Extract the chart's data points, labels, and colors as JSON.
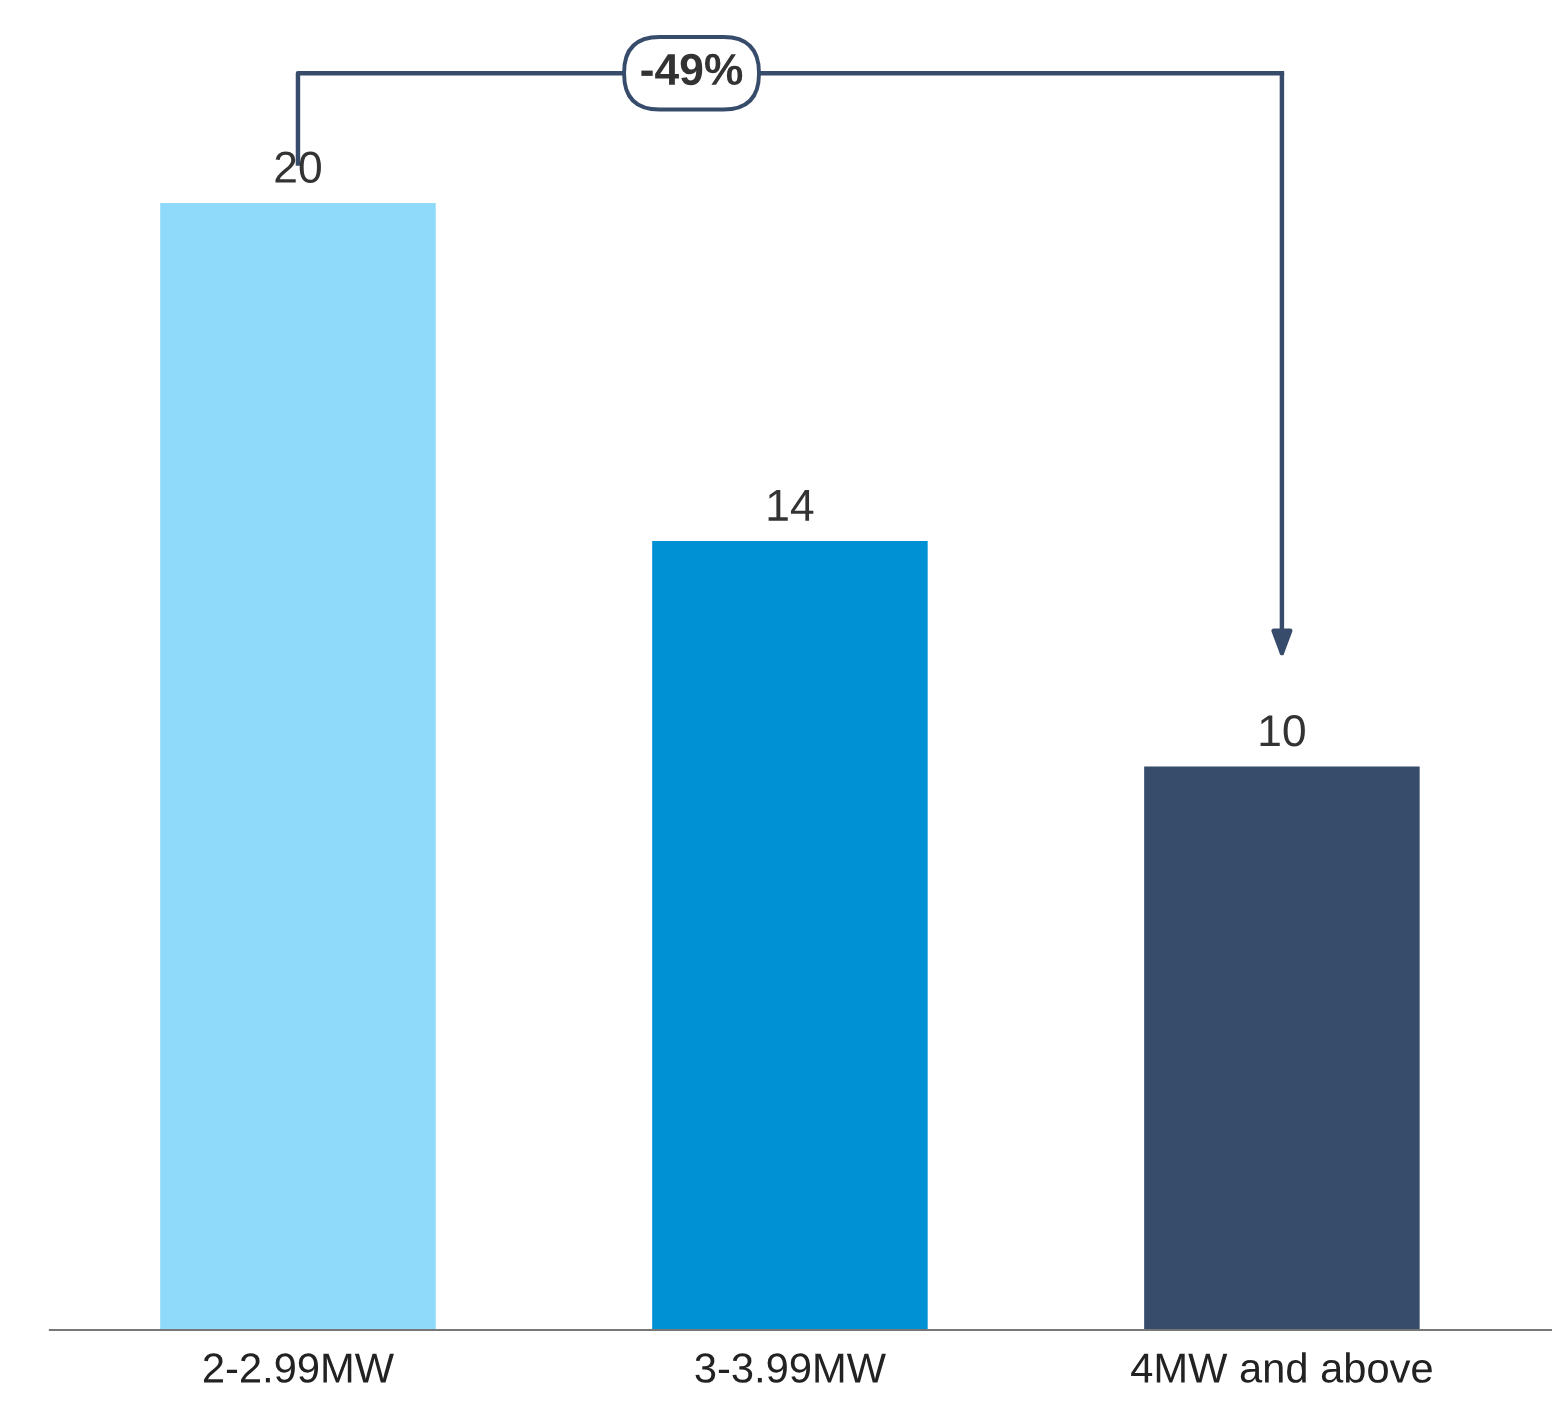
{
  "chart_data": {
    "type": "bar",
    "categories": [
      "2-2.99MW",
      "3-3.99MW",
      "4MW and above"
    ],
    "values": [
      20,
      14,
      10
    ],
    "colors": [
      "#8fd9fb",
      "#0091d5",
      "#374c6b"
    ],
    "data_labels": true,
    "grid": false,
    "legend": false,
    "annotations": [
      "-49%"
    ]
  }
}
